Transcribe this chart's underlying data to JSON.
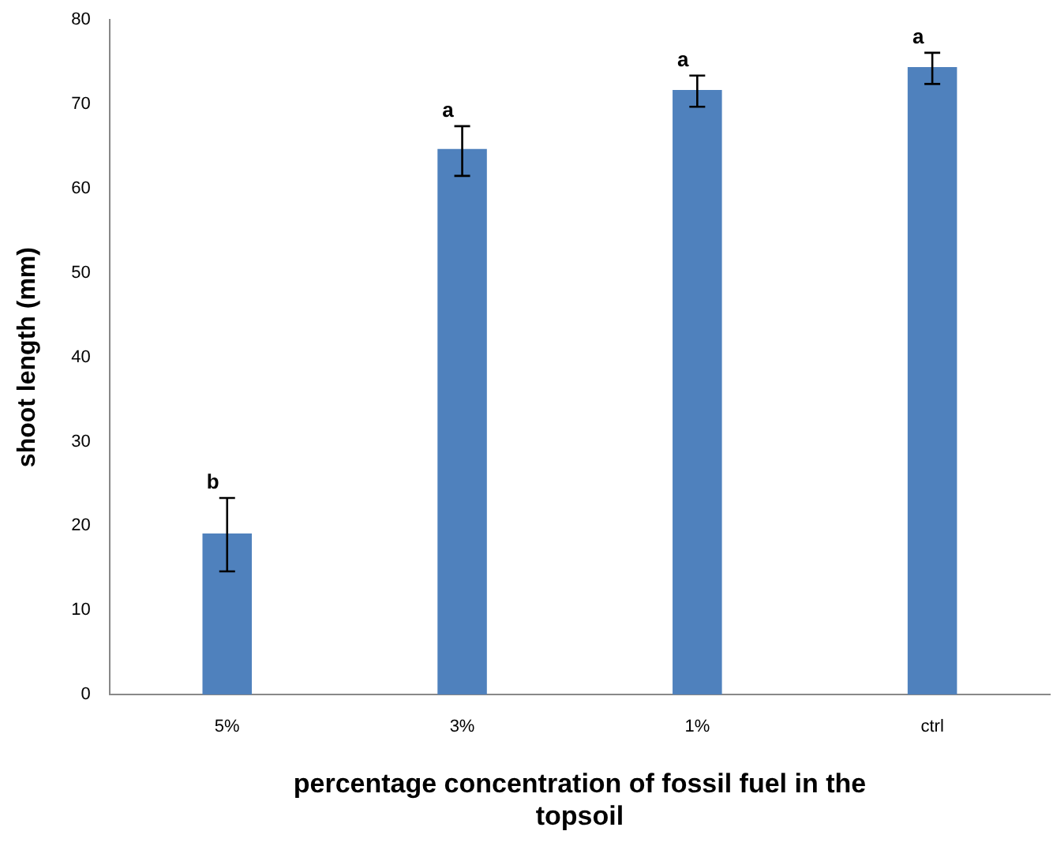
{
  "chart_data": {
    "type": "bar",
    "xlabel": "percentage concentration of fossil fuel in the topsoil",
    "ylabel": "shoot length (mm)",
    "categories": [
      "5%",
      "3%",
      "1%",
      "ctrl"
    ],
    "values": [
      19.1,
      64.7,
      71.7,
      74.4
    ],
    "color": "#4f81bd",
    "errors": [
      [
        14.6,
        23.3
      ],
      [
        61.5,
        67.4
      ],
      [
        69.7,
        73.4
      ],
      [
        72.4,
        76.1
      ]
    ],
    "ylim": [
      0,
      80
    ],
    "yticks": [
      0,
      10,
      20,
      30,
      40,
      50,
      60,
      70,
      80
    ],
    "grid": false,
    "legend": false,
    "annotations": [
      {
        "text": "b",
        "x": "5%",
        "y": 23.3
      },
      {
        "text": "a",
        "x": "3%",
        "y": 67.4
      },
      {
        "text": "a",
        "x": "1%",
        "y": 73.4
      },
      {
        "text": "a",
        "x": "ctrl",
        "y": 76.1
      }
    ]
  }
}
